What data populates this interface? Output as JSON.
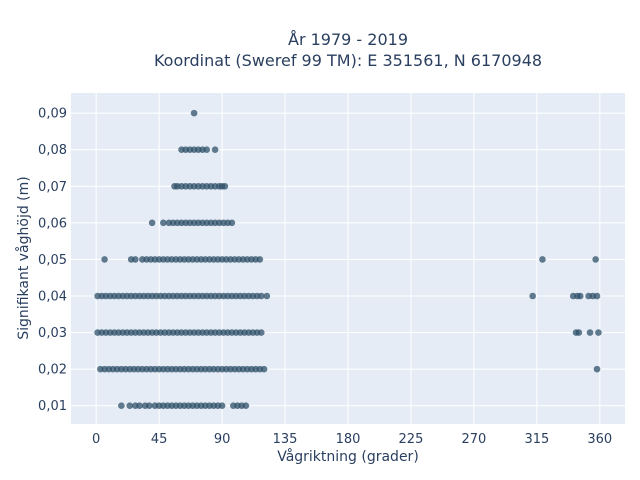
{
  "chart_data": {
    "type": "scatter",
    "title": [
      "År 1979 - 2019",
      "Koordinat (Sweref 99 TM): E 351561, N 6170948"
    ],
    "xlabel": "Vågriktning (grader)",
    "ylabel": "Signifikant våghöjd (m)",
    "xlim": [
      -18,
      378
    ],
    "ylim": [
      0.005,
      0.0955
    ],
    "x_ticks": [
      0,
      45,
      90,
      135,
      180,
      225,
      270,
      315,
      360
    ],
    "x_tick_labels": [
      "0",
      "45",
      "90",
      "135",
      "180",
      "225",
      "270",
      "315",
      "360"
    ],
    "y_ticks": [
      0.01,
      0.02,
      0.03,
      0.04,
      0.05,
      0.06,
      0.07,
      0.08,
      0.09
    ],
    "y_tick_labels": [
      "0,01",
      "0,02",
      "0,03",
      "0,04",
      "0,05",
      "0,06",
      "0,07",
      "0,08",
      "0,09"
    ],
    "grid": true,
    "legend": "none",
    "colors": {
      "plot_background": "#e5ecf6",
      "grid": "#ffffff",
      "marker": "#2f5068",
      "text": "#2a3f5f"
    },
    "series": [
      {
        "points": [
          [
            70,
            0.09
          ],
          [
            61,
            0.08
          ],
          [
            64,
            0.08
          ],
          [
            67,
            0.08
          ],
          [
            70,
            0.08
          ],
          [
            73,
            0.08
          ],
          [
            76,
            0.08
          ],
          [
            79,
            0.08
          ],
          [
            85,
            0.08
          ],
          [
            56,
            0.07
          ],
          [
            58,
            0.07
          ],
          [
            61,
            0.07
          ],
          [
            64,
            0.07
          ],
          [
            67,
            0.07
          ],
          [
            70,
            0.07
          ],
          [
            73,
            0.07
          ],
          [
            76,
            0.07
          ],
          [
            79,
            0.07
          ],
          [
            82,
            0.07
          ],
          [
            85,
            0.07
          ],
          [
            88,
            0.07
          ],
          [
            90,
            0.07
          ],
          [
            92,
            0.07
          ],
          [
            40,
            0.06
          ],
          [
            48,
            0.06
          ],
          [
            52,
            0.06
          ],
          [
            55,
            0.06
          ],
          [
            58,
            0.06
          ],
          [
            61,
            0.06
          ],
          [
            64,
            0.06
          ],
          [
            67,
            0.06
          ],
          [
            70,
            0.06
          ],
          [
            73,
            0.06
          ],
          [
            76,
            0.06
          ],
          [
            79,
            0.06
          ],
          [
            82,
            0.06
          ],
          [
            85,
            0.06
          ],
          [
            88,
            0.06
          ],
          [
            91,
            0.06
          ],
          [
            94,
            0.06
          ],
          [
            97,
            0.06
          ],
          [
            6,
            0.05
          ],
          [
            25,
            0.05
          ],
          [
            28,
            0.05
          ],
          [
            33,
            0.05
          ],
          [
            36,
            0.05
          ],
          [
            39,
            0.05
          ],
          [
            42,
            0.05
          ],
          [
            45,
            0.05
          ],
          [
            48,
            0.05
          ],
          [
            51,
            0.05
          ],
          [
            54,
            0.05
          ],
          [
            57,
            0.05
          ],
          [
            60,
            0.05
          ],
          [
            63,
            0.05
          ],
          [
            66,
            0.05
          ],
          [
            69,
            0.05
          ],
          [
            72,
            0.05
          ],
          [
            75,
            0.05
          ],
          [
            78,
            0.05
          ],
          [
            81,
            0.05
          ],
          [
            84,
            0.05
          ],
          [
            87,
            0.05
          ],
          [
            90,
            0.05
          ],
          [
            93,
            0.05
          ],
          [
            96,
            0.05
          ],
          [
            99,
            0.05
          ],
          [
            102,
            0.05
          ],
          [
            105,
            0.05
          ],
          [
            108,
            0.05
          ],
          [
            111,
            0.05
          ],
          [
            114,
            0.05
          ],
          [
            117,
            0.05
          ],
          [
            319,
            0.05
          ],
          [
            357,
            0.05
          ],
          [
            1,
            0.04
          ],
          [
            4,
            0.04
          ],
          [
            7,
            0.04
          ],
          [
            10,
            0.04
          ],
          [
            13,
            0.04
          ],
          [
            16,
            0.04
          ],
          [
            19,
            0.04
          ],
          [
            22,
            0.04
          ],
          [
            25,
            0.04
          ],
          [
            28,
            0.04
          ],
          [
            31,
            0.04
          ],
          [
            34,
            0.04
          ],
          [
            37,
            0.04
          ],
          [
            40,
            0.04
          ],
          [
            43,
            0.04
          ],
          [
            46,
            0.04
          ],
          [
            49,
            0.04
          ],
          [
            52,
            0.04
          ],
          [
            55,
            0.04
          ],
          [
            58,
            0.04
          ],
          [
            61,
            0.04
          ],
          [
            64,
            0.04
          ],
          [
            67,
            0.04
          ],
          [
            70,
            0.04
          ],
          [
            73,
            0.04
          ],
          [
            76,
            0.04
          ],
          [
            79,
            0.04
          ],
          [
            82,
            0.04
          ],
          [
            85,
            0.04
          ],
          [
            88,
            0.04
          ],
          [
            91,
            0.04
          ],
          [
            94,
            0.04
          ],
          [
            97,
            0.04
          ],
          [
            100,
            0.04
          ],
          [
            103,
            0.04
          ],
          [
            106,
            0.04
          ],
          [
            109,
            0.04
          ],
          [
            112,
            0.04
          ],
          [
            115,
            0.04
          ],
          [
            118,
            0.04
          ],
          [
            122,
            0.04
          ],
          [
            312,
            0.04
          ],
          [
            341,
            0.04
          ],
          [
            344,
            0.04
          ],
          [
            346,
            0.04
          ],
          [
            352,
            0.04
          ],
          [
            355,
            0.04
          ],
          [
            358,
            0.04
          ],
          [
            1,
            0.03
          ],
          [
            4,
            0.03
          ],
          [
            7,
            0.03
          ],
          [
            10,
            0.03
          ],
          [
            13,
            0.03
          ],
          [
            16,
            0.03
          ],
          [
            19,
            0.03
          ],
          [
            22,
            0.03
          ],
          [
            25,
            0.03
          ],
          [
            28,
            0.03
          ],
          [
            31,
            0.03
          ],
          [
            34,
            0.03
          ],
          [
            37,
            0.03
          ],
          [
            40,
            0.03
          ],
          [
            43,
            0.03
          ],
          [
            46,
            0.03
          ],
          [
            49,
            0.03
          ],
          [
            52,
            0.03
          ],
          [
            55,
            0.03
          ],
          [
            58,
            0.03
          ],
          [
            61,
            0.03
          ],
          [
            64,
            0.03
          ],
          [
            67,
            0.03
          ],
          [
            70,
            0.03
          ],
          [
            73,
            0.03
          ],
          [
            76,
            0.03
          ],
          [
            79,
            0.03
          ],
          [
            82,
            0.03
          ],
          [
            85,
            0.03
          ],
          [
            88,
            0.03
          ],
          [
            91,
            0.03
          ],
          [
            94,
            0.03
          ],
          [
            97,
            0.03
          ],
          [
            100,
            0.03
          ],
          [
            103,
            0.03
          ],
          [
            106,
            0.03
          ],
          [
            109,
            0.03
          ],
          [
            112,
            0.03
          ],
          [
            115,
            0.03
          ],
          [
            118,
            0.03
          ],
          [
            343,
            0.03
          ],
          [
            345,
            0.03
          ],
          [
            353,
            0.03
          ],
          [
            359,
            0.03
          ],
          [
            3,
            0.02
          ],
          [
            6,
            0.02
          ],
          [
            9,
            0.02
          ],
          [
            12,
            0.02
          ],
          [
            15,
            0.02
          ],
          [
            18,
            0.02
          ],
          [
            21,
            0.02
          ],
          [
            24,
            0.02
          ],
          [
            27,
            0.02
          ],
          [
            30,
            0.02
          ],
          [
            33,
            0.02
          ],
          [
            36,
            0.02
          ],
          [
            39,
            0.02
          ],
          [
            42,
            0.02
          ],
          [
            45,
            0.02
          ],
          [
            48,
            0.02
          ],
          [
            51,
            0.02
          ],
          [
            54,
            0.02
          ],
          [
            57,
            0.02
          ],
          [
            60,
            0.02
          ],
          [
            63,
            0.02
          ],
          [
            66,
            0.02
          ],
          [
            69,
            0.02
          ],
          [
            72,
            0.02
          ],
          [
            75,
            0.02
          ],
          [
            78,
            0.02
          ],
          [
            81,
            0.02
          ],
          [
            84,
            0.02
          ],
          [
            87,
            0.02
          ],
          [
            90,
            0.02
          ],
          [
            93,
            0.02
          ],
          [
            96,
            0.02
          ],
          [
            99,
            0.02
          ],
          [
            102,
            0.02
          ],
          [
            105,
            0.02
          ],
          [
            108,
            0.02
          ],
          [
            111,
            0.02
          ],
          [
            114,
            0.02
          ],
          [
            117,
            0.02
          ],
          [
            120,
            0.02
          ],
          [
            358,
            0.02
          ],
          [
            18,
            0.01
          ],
          [
            24,
            0.01
          ],
          [
            28,
            0.01
          ],
          [
            31,
            0.01
          ],
          [
            35,
            0.01
          ],
          [
            38,
            0.01
          ],
          [
            42,
            0.01
          ],
          [
            45,
            0.01
          ],
          [
            48,
            0.01
          ],
          [
            51,
            0.01
          ],
          [
            54,
            0.01
          ],
          [
            57,
            0.01
          ],
          [
            60,
            0.01
          ],
          [
            63,
            0.01
          ],
          [
            66,
            0.01
          ],
          [
            69,
            0.01
          ],
          [
            72,
            0.01
          ],
          [
            75,
            0.01
          ],
          [
            78,
            0.01
          ],
          [
            81,
            0.01
          ],
          [
            84,
            0.01
          ],
          [
            87,
            0.01
          ],
          [
            90,
            0.01
          ],
          [
            98,
            0.01
          ],
          [
            101,
            0.01
          ],
          [
            104,
            0.01
          ],
          [
            107,
            0.01
          ]
        ]
      }
    ]
  }
}
